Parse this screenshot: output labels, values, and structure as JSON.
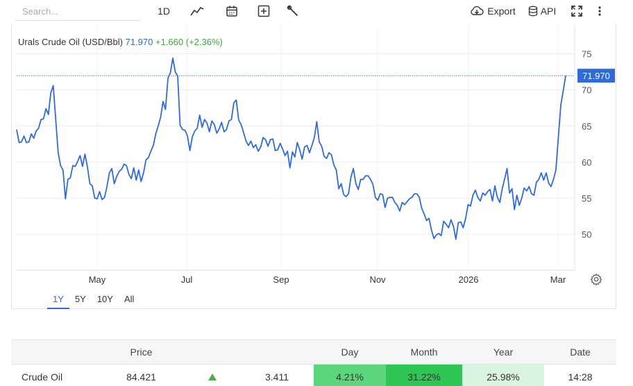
{
  "toolbar": {
    "search_placeholder": "Search...",
    "interval_label": "1D",
    "export_label": "Export",
    "api_label": "API"
  },
  "header": {
    "name": "Urals Crude Oil (USD/Bbl)",
    "price": "71.970",
    "change": "+1.660 (+2.36%)"
  },
  "range_tabs": [
    "1Y",
    "5Y",
    "10Y",
    "All"
  ],
  "active_range": "1Y",
  "chart_data": {
    "type": "line",
    "title": "Urals Crude Oil (USD/Bbl)",
    "xlabel": "",
    "ylabel": "",
    "ylim": [
      45,
      79
    ],
    "x_ticks": [
      "May",
      "Jul",
      "Sep",
      "Nov",
      "2026",
      "Mar"
    ],
    "y_ticks": [
      50,
      55,
      60,
      65,
      70,
      75
    ],
    "last_value_label": "71.970",
    "line_color": "#2e6ad8",
    "grid": true,
    "series": [
      {
        "name": "Urals Crude Oil",
        "values": [
          64.5,
          62.7,
          62.8,
          63.6,
          62.7,
          62.8,
          63.9,
          63.3,
          64.3,
          64.7,
          65.9,
          66.0,
          67.4,
          66.6,
          69.6,
          70.6,
          66.0,
          61.3,
          59.5,
          58.9,
          54.9,
          57.6,
          57.8,
          59.5,
          59.4,
          60.1,
          60.9,
          59.4,
          61.1,
          59.3,
          57.0,
          56.7,
          55.0,
          54.9,
          55.9,
          54.8,
          55.1,
          56.6,
          58.5,
          59.1,
          57.0,
          58.0,
          58.7,
          59.0,
          59.7,
          59.5,
          58.3,
          57.7,
          59.2,
          57.5,
          58.9,
          57.3,
          58.5,
          60.3,
          60.6,
          61.5,
          62.3,
          63.9,
          65.0,
          66.2,
          68.4,
          67.3,
          71.6,
          72.4,
          74.4,
          72.5,
          71.9,
          65.1,
          64.5,
          64.4,
          63.6,
          61.6,
          63.5,
          64.3,
          64.7,
          66.5,
          64.8,
          65.9,
          65.4,
          64.2,
          65.7,
          65.2,
          64.0,
          64.6,
          65.5,
          64.2,
          64.5,
          65.7,
          65.9,
          68.2,
          68.6,
          65.8,
          65.2,
          64.1,
          62.9,
          62.3,
          62.9,
          62.0,
          62.4,
          61.5,
          62.1,
          63.4,
          63.1,
          62.2,
          63.1,
          63.2,
          61.6,
          61.7,
          62.6,
          61.8,
          60.9,
          61.5,
          59.2,
          61.4,
          60.7,
          62.7,
          61.7,
          60.4,
          62.1,
          62.3,
          61.3,
          62.3,
          63.4,
          65.6,
          62.8,
          62.2,
          60.8,
          60.5,
          61.3,
          61.0,
          59.6,
          58.9,
          56.3,
          57.0,
          55.5,
          55.2,
          55.6,
          57.9,
          59.1,
          57.0,
          56.2,
          57.6,
          57.6,
          58.1,
          58.1,
          57.6,
          56.9,
          55.1,
          54.7,
          55.6,
          55.5,
          53.7,
          55.0,
          55.1,
          55.1,
          54.4,
          54.0,
          53.2,
          54.4,
          54.1,
          54.5,
          54.9,
          55.1,
          55.6,
          55.6,
          55.1,
          53.6,
          52.8,
          51.9,
          52.2,
          50.6,
          49.4,
          49.9,
          50.1,
          49.8,
          51.8,
          51.4,
          50.9,
          52.0,
          51.1,
          49.3,
          51.6,
          51.7,
          50.9,
          52.2,
          54.1,
          53.9,
          55.4,
          56.1,
          55.1,
          54.6,
          55.7,
          55.4,
          55.9,
          56.2,
          54.6,
          56.7,
          55.1,
          54.4,
          56.3,
          57.7,
          59.1,
          55.7,
          56.3,
          53.4,
          55.4,
          54.0,
          55.0,
          56.4,
          56.0,
          56.6,
          55.6,
          55.4,
          57.2,
          57.6,
          58.5,
          57.5,
          58.5,
          57.1,
          56.6,
          57.6,
          58.9,
          63.5,
          67.9,
          69.9,
          71.97
        ]
      }
    ]
  },
  "table": {
    "headers": [
      "",
      "Price",
      "",
      "",
      "Day",
      "Month",
      "Year",
      "Date"
    ],
    "rows": [
      {
        "name": "Crude Oil",
        "price": "84.421",
        "direction": "up",
        "change": "3.411",
        "day": "4.21%",
        "month": "31.22%",
        "year": "25.98%",
        "date": "14:28"
      }
    ],
    "colors": {
      "day_bg": "#5cd67a",
      "month_bg": "#2ec654",
      "year_bg": "#d9f5df",
      "up_arrow": "#4cae4c"
    }
  }
}
